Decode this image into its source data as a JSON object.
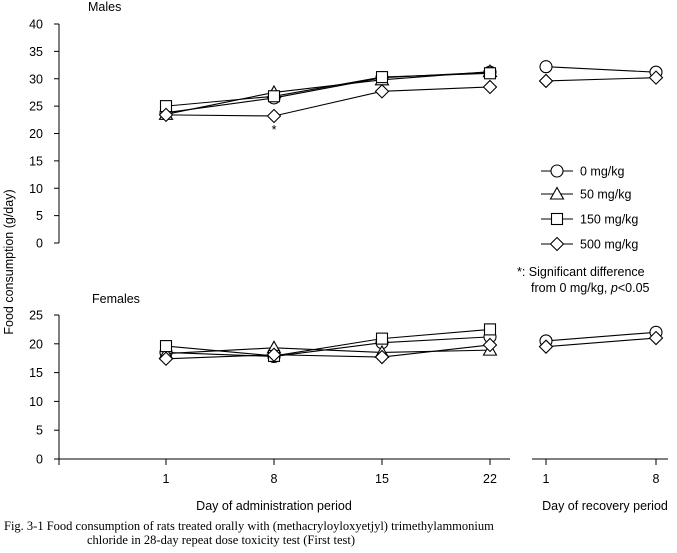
{
  "chart_data": {
    "type": "line",
    "y_axis_label": "Food consumption (g/day)",
    "x_admin_label": "Day of administration period",
    "x_recovery_label": "Day of recovery period",
    "admin_ticks": [
      "1",
      "8",
      "15",
      "22"
    ],
    "recovery_ticks": [
      "1",
      "8"
    ],
    "legend": [
      {
        "name": "0 mg/kg",
        "marker": "circle"
      },
      {
        "name": "50 mg/kg",
        "marker": "triangle"
      },
      {
        "name": "150 mg/kg",
        "marker": "square"
      },
      {
        "name": "500 mg/kg",
        "marker": "diamond"
      }
    ],
    "note_line1": "*: Significant difference",
    "note_line2_prefix": "from 0 mg/kg, ",
    "note_p": "p",
    "note_line2_suffix": "<0.05",
    "significance_marker": "*",
    "panels": [
      {
        "title": "Males",
        "ylim": [
          0,
          40
        ],
        "yticks": [
          "0",
          "5",
          "10",
          "15",
          "20",
          "25",
          "30",
          "35",
          "40"
        ],
        "series": [
          {
            "name": "0 mg/kg",
            "admin": [
              23.8,
              26.5,
              30.2,
              31.2
            ],
            "recovery": [
              32.2,
              31.2
            ]
          },
          {
            "name": "50 mg/kg",
            "admin": [
              23.5,
              27.5,
              29.8,
              31.3
            ],
            "recovery": [
              null,
              null
            ]
          },
          {
            "name": "150 mg/kg",
            "admin": [
              25.0,
              26.8,
              30.3,
              31.0
            ],
            "recovery": [
              null,
              null
            ]
          },
          {
            "name": "500 mg/kg",
            "admin": [
              23.4,
              23.2,
              27.7,
              28.5
            ],
            "recovery": [
              29.6,
              30.2
            ]
          }
        ],
        "significant": [
          {
            "series": "500 mg/kg",
            "day": "8"
          }
        ]
      },
      {
        "title": "Females",
        "ylim": [
          0,
          25
        ],
        "yticks": [
          "0",
          "5",
          "10",
          "15",
          "20",
          "25"
        ],
        "series": [
          {
            "name": "0 mg/kg",
            "admin": [
              18.5,
              17.8,
              20.2,
              21.2
            ],
            "recovery": [
              20.5,
              22.0
            ]
          },
          {
            "name": "50 mg/kg",
            "admin": [
              18.3,
              19.3,
              18.5,
              18.9
            ],
            "recovery": [
              null,
              null
            ]
          },
          {
            "name": "150 mg/kg",
            "admin": [
              19.6,
              17.9,
              20.9,
              22.5
            ],
            "recovery": [
              null,
              null
            ]
          },
          {
            "name": "500 mg/kg",
            "admin": [
              17.4,
              18.1,
              17.7,
              19.8
            ],
            "recovery": [
              19.5,
              21.0
            ]
          }
        ],
        "significant": []
      }
    ]
  },
  "caption": {
    "line1": "Fig. 3-1  Food consumption of rats treated orally with (methacryloyloxyetjyl) trimethylammonium",
    "line2": "chloride in 28-day repeat dose toxicity test (First test)"
  }
}
